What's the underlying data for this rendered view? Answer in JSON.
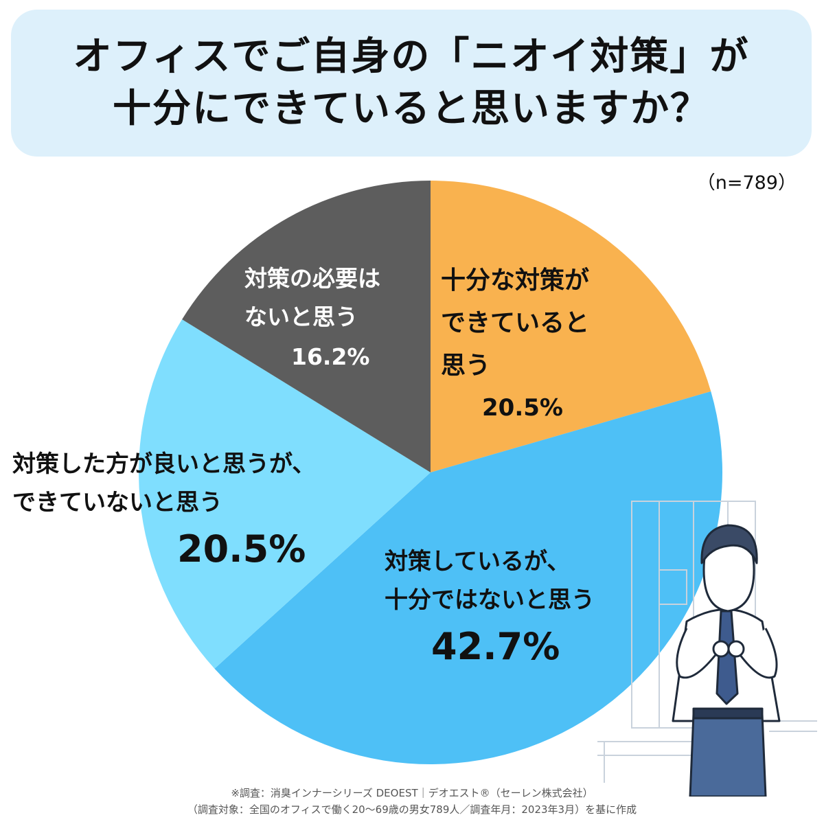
{
  "title": {
    "line1": "オフィスでご自身の「ニオイ対策」が",
    "line2": "十分にできていると思いますか？"
  },
  "sample_size": "（n=789）",
  "chart_data": {
    "type": "pie",
    "title": "オフィスでご自身の「ニオイ対策」が十分にできていると思いますか？",
    "n": 789,
    "slices": [
      {
        "label": "十分な対策ができていると思う",
        "label_lines": [
          "十分な対策が",
          "できていると",
          "思う"
        ],
        "value": 20.5,
        "display": "20.5%",
        "color": "#f9b24f"
      },
      {
        "label": "対策しているが、十分ではないと思う",
        "label_lines": [
          "対策しているが、",
          "十分ではないと思う"
        ],
        "value": 42.7,
        "display": "42.7%",
        "color": "#4ec0f6"
      },
      {
        "label": "対策した方が良いと思うが、できていないと思う",
        "label_lines": [
          "対策した方が良いと思うが、",
          "できていないと思う"
        ],
        "value": 20.5,
        "display": "20.5%",
        "color": "#7fdefe"
      },
      {
        "label": "対策の必要はないと思う",
        "label_lines": [
          "対策の必要は",
          "ないと思う"
        ],
        "value": 16.2,
        "display": "16.2%",
        "color": "#5d5d5d"
      }
    ]
  },
  "footer": {
    "line1": "※調査：消臭インナーシリーズ DEOEST｜デオエスト®（セーレン株式会社）",
    "line2": "（調査対象：全国のオフィスで働く20〜69歳の男女789人／調査年月：2023年3月）を基に作成"
  },
  "illustration": {
    "icon": "office-worker-adjusting-tie-illustration"
  }
}
